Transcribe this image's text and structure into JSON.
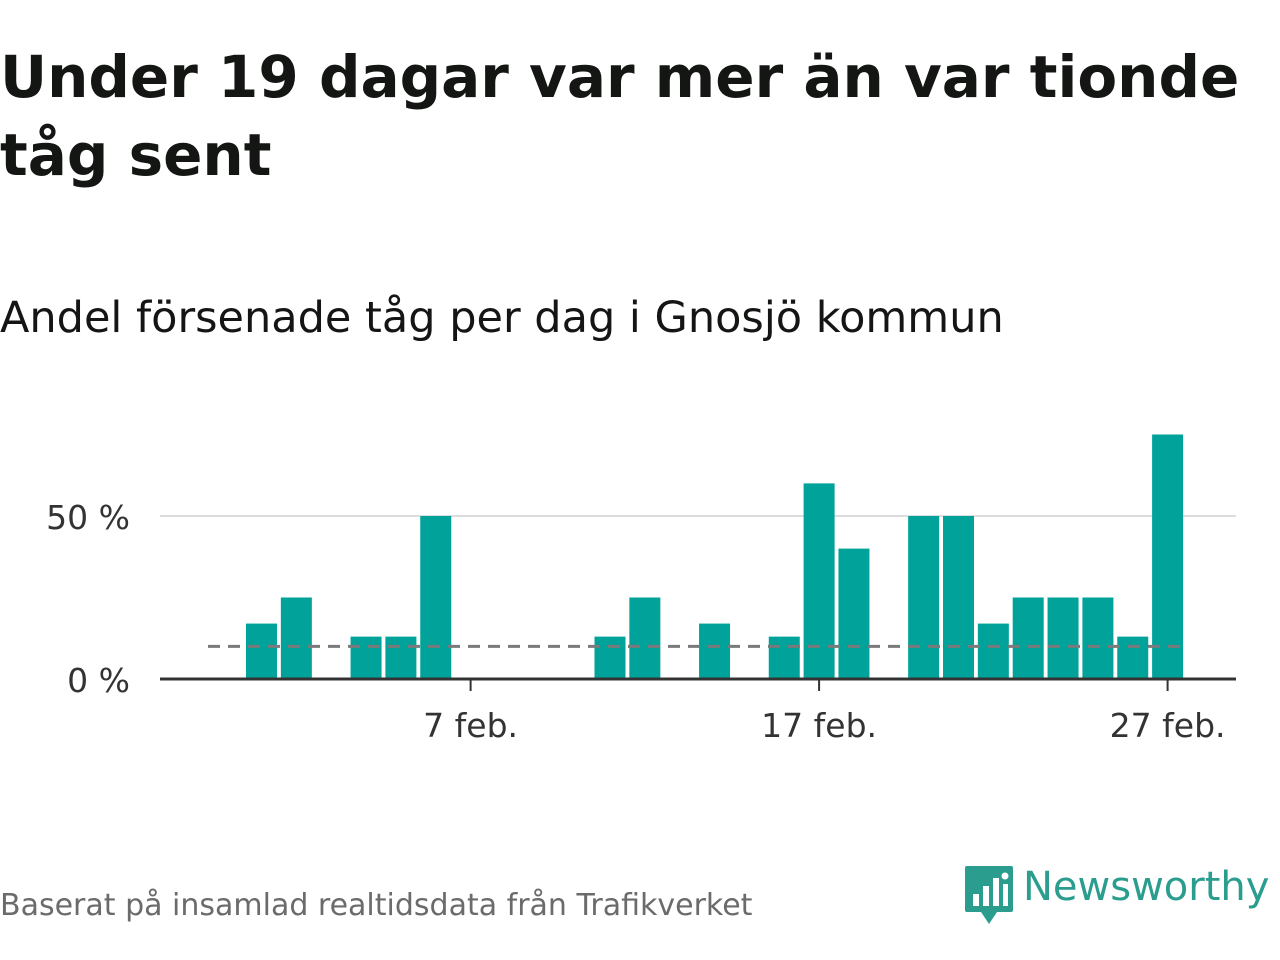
{
  "title": "Under 19 dagar var mer än var tionde tåg sent",
  "subtitle": "Andel försenade tåg per dag i Gnosjö kommun",
  "source": "Baserat på insamlad realtidsdata från Trafikverket",
  "brand": {
    "name": "Newsworthy",
    "color": "#2a9d8f",
    "icon": "newsworthy-logo-icon"
  },
  "colors": {
    "bar": "#00a29a",
    "threshold": "#7a7a7a",
    "grid": "#dddddd",
    "axis": "#333333",
    "text": "#333333"
  },
  "chart_data": {
    "type": "bar",
    "x": [
      "1 feb.",
      "2 feb.",
      "3 feb.",
      "4 feb.",
      "5 feb.",
      "6 feb.",
      "7 feb.",
      "8 feb.",
      "9 feb.",
      "10 feb.",
      "11 feb.",
      "12 feb.",
      "13 feb.",
      "14 feb.",
      "15 feb.",
      "16 feb.",
      "17 feb.",
      "18 feb.",
      "19 feb.",
      "20 feb.",
      "21 feb.",
      "22 feb.",
      "23 feb.",
      "24 feb.",
      "25 feb.",
      "26 feb.",
      "27 feb.",
      "28 feb."
    ],
    "series": [
      {
        "values": [
          17,
          25,
          0,
          13,
          13,
          50,
          0,
          0,
          0,
          0,
          13,
          25,
          0,
          17,
          0,
          13,
          60,
          40,
          0,
          50,
          50,
          17,
          25,
          25,
          25,
          13,
          75,
          0
        ]
      }
    ],
    "threshold": 10,
    "ylim": [
      0,
      80
    ],
    "yticks": [
      0,
      50
    ],
    "ytick_labels": [
      "0 %",
      "50 %"
    ],
    "xticks": [
      "7 feb.",
      "17 feb.",
      "27 feb."
    ],
    "grid": true,
    "xlabel": "",
    "ylabel": ""
  }
}
